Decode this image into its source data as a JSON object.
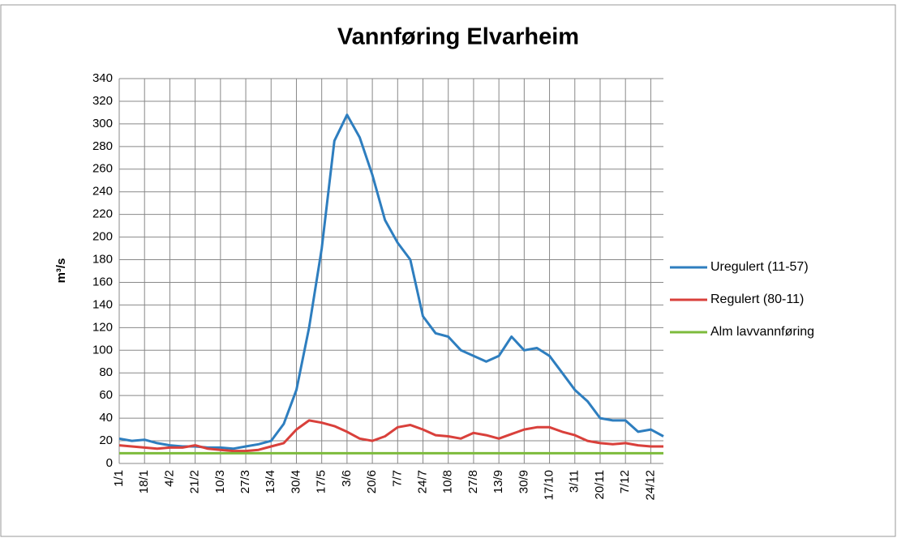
{
  "chart_data": {
    "type": "line",
    "title": "Vannføring Elvarheim",
    "y_label": "m³/s",
    "categories": [
      "1/1",
      null,
      "18/1",
      null,
      "4/2",
      null,
      "21/2",
      null,
      "10/3",
      null,
      "27/3",
      null,
      "13/4",
      null,
      "30/4",
      null,
      "17/5",
      null,
      "3/6",
      null,
      "20/6",
      null,
      "7/7",
      null,
      "24/7",
      null,
      "10/8",
      null,
      "27/8",
      null,
      "13/9",
      null,
      "30/9",
      null,
      "17/10",
      null,
      "3/11",
      null,
      "20/11",
      null,
      "7/12",
      null,
      "24/12",
      null
    ],
    "series": [
      {
        "name": "Uregulert (11-57)",
        "color": "#2e7ebf",
        "values": [
          22,
          20,
          21,
          18,
          16,
          15,
          15,
          14,
          14,
          13,
          15,
          17,
          20,
          35,
          65,
          120,
          190,
          285,
          308,
          288,
          255,
          215,
          195,
          180,
          130,
          115,
          112,
          100,
          95,
          90,
          95,
          112,
          100,
          102,
          95,
          80,
          65,
          55,
          40,
          38,
          38,
          28,
          30,
          24
        ]
      },
      {
        "name": "Regulert (80-11)",
        "color": "#d9403b",
        "values": [
          16,
          15,
          14,
          13,
          14,
          14,
          16,
          13,
          12,
          11,
          11,
          12,
          15,
          18,
          30,
          38,
          36,
          33,
          28,
          22,
          20,
          24,
          32,
          34,
          30,
          25,
          24,
          22,
          27,
          25,
          22,
          26,
          30,
          32,
          32,
          28,
          25,
          20,
          18,
          17,
          18,
          16,
          15,
          15
        ]
      },
      {
        "name": "Alm lavvannføring",
        "color": "#7dbb3c",
        "values": [
          9,
          9,
          9,
          9,
          9,
          9,
          9,
          9,
          9,
          9,
          9,
          9,
          9,
          9,
          9,
          9,
          9,
          9,
          9,
          9,
          9,
          9,
          9,
          9,
          9,
          9,
          9,
          9,
          9,
          9,
          9,
          9,
          9,
          9,
          9,
          9,
          9,
          9,
          9,
          9,
          9,
          9,
          9,
          9
        ]
      }
    ],
    "ylim": [
      0,
      340
    ],
    "yticks": [
      0,
      20,
      40,
      60,
      80,
      100,
      120,
      140,
      160,
      180,
      200,
      220,
      240,
      260,
      280,
      300,
      320,
      340
    ],
    "grid": true,
    "legend": "right"
  }
}
